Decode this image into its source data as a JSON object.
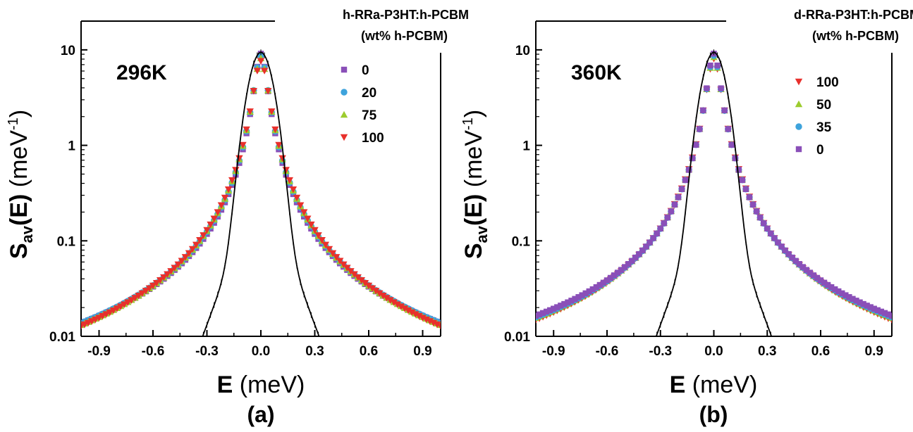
{
  "chart_data": [
    {
      "type": "scatter",
      "panel_label": "(a)",
      "temperature": "296K",
      "legend_title_line1": "h-RRa-P3HT:h-PCBM",
      "legend_title_line2": "(wt% h-PCBM)",
      "xlabel_bold": "E",
      "xlabel_rest": " (meV)",
      "ylabel_main": "S",
      "ylabel_sub": "av",
      "ylabel_paren": "(E)",
      "ylabel_unit": " (meV",
      "ylabel_sup": "-1",
      "ylabel_close": ")",
      "xlim": [
        -1.0,
        1.0
      ],
      "ylim": [
        0.01,
        20
      ],
      "yscale": "log",
      "xticks": [
        "-0.9",
        "-0.6",
        "-0.3",
        "0.0",
        "0.3",
        "0.6",
        "0.9"
      ],
      "yticks": [
        "0.01",
        "0.1",
        "1",
        "10"
      ],
      "legend_position": "top-right",
      "series": [
        {
          "name": "0",
          "color": "#8a4fb8",
          "marker": "square",
          "peak": 9.0,
          "hwhm": 0.033,
          "tail": 0.004,
          "alpha": 0.85
        },
        {
          "name": "20",
          "color": "#3ea3dc",
          "marker": "circle",
          "peak": 8.6,
          "hwhm": 0.035,
          "tail": 0.0033,
          "alpha": 0.85
        },
        {
          "name": "75",
          "color": "#9ccc2e",
          "marker": "triangle-up",
          "peak": 8.1,
          "hwhm": 0.037,
          "tail": 0.0021,
          "alpha": 0.85
        },
        {
          "name": "100",
          "color": "#e8302c",
          "marker": "triangle-down",
          "peak": 7.6,
          "hwhm": 0.039,
          "tail": 0.0013,
          "alpha": 0.85
        }
      ],
      "resolution_curve": {
        "color": "#000000",
        "peak": 9.0,
        "sigma": 0.055,
        "floor_at_0_3": 0.013
      }
    },
    {
      "type": "scatter",
      "panel_label": "(b)",
      "temperature": "360K",
      "legend_title_line1": "d-RRa-P3HT:h-PCBM",
      "legend_title_line2": "(wt% h-PCBM)",
      "xlabel_bold": "E",
      "xlabel_rest": " (meV)",
      "ylabel_main": "S",
      "ylabel_sub": "av",
      "ylabel_paren": "(E)",
      "ylabel_unit": " (meV",
      "ylabel_sup": "-1",
      "ylabel_close": ")",
      "xlim": [
        -1.0,
        1.0
      ],
      "ylim": [
        0.01,
        20
      ],
      "yscale": "log",
      "xticks": [
        "-0.9",
        "-0.6",
        "-0.3",
        "0.0",
        "0.3",
        "0.6",
        "0.9"
      ],
      "yticks": [
        "0.01",
        "0.1",
        "1",
        "10"
      ],
      "legend_position": "top-right",
      "series": [
        {
          "name": "100",
          "color": "#e8302c",
          "marker": "triangle-down",
          "peak": 8.0,
          "hwhm": 0.038,
          "tail": 0.0034,
          "alpha": 0.8
        },
        {
          "name": "50",
          "color": "#9ccc2e",
          "marker": "triangle-up",
          "peak": 8.3,
          "hwhm": 0.037,
          "tail": 0.0043,
          "alpha": 0.8
        },
        {
          "name": "35",
          "color": "#3ea3dc",
          "marker": "circle",
          "peak": 8.6,
          "hwhm": 0.036,
          "tail": 0.0048,
          "alpha": 0.8
        },
        {
          "name": "0",
          "color": "#8a4fb8",
          "marker": "square",
          "peak": 9.0,
          "hwhm": 0.035,
          "tail": 0.0055,
          "alpha": 0.8
        }
      ],
      "resolution_curve": {
        "color": "#000000",
        "peak": 9.0,
        "sigma": 0.055,
        "floor_at_0_3": 0.013
      }
    }
  ]
}
